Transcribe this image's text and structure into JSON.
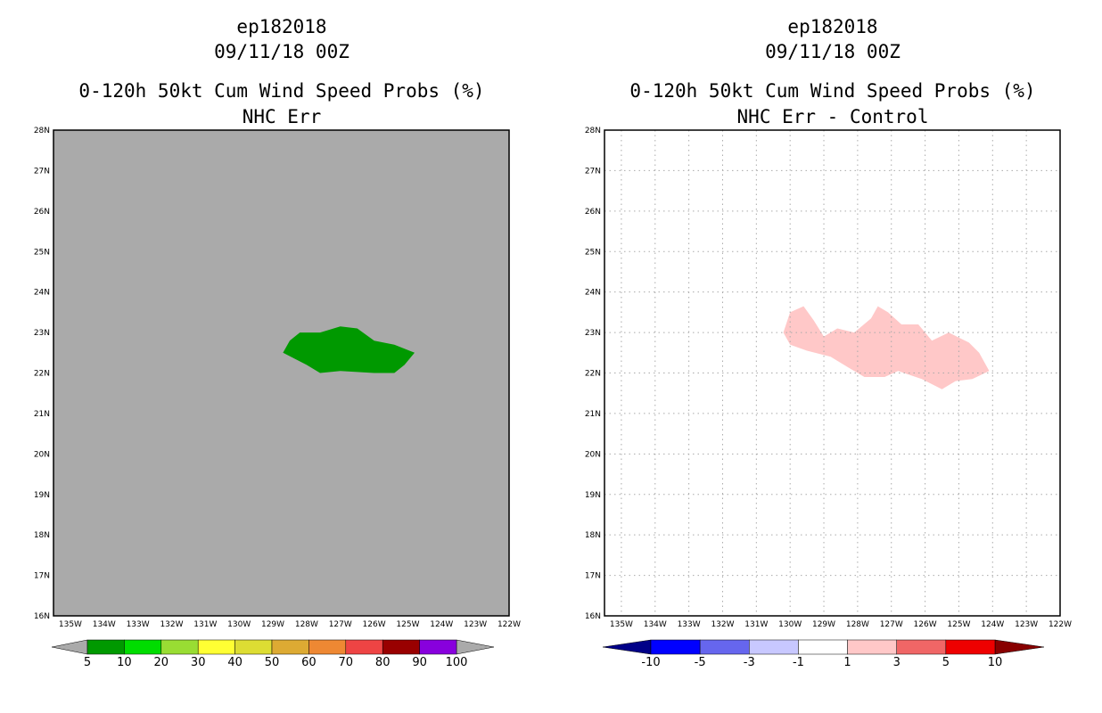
{
  "chart_data": [
    {
      "type": "heatmap",
      "title_lines": [
        "ep182018",
        "09/11/18 00Z",
        "0-120h 50kt Cum Wind Speed Probs (%)",
        "NHC Err"
      ],
      "xlabel": "",
      "ylabel": "",
      "xlim": [
        -135.5,
        -122
      ],
      "ylim": [
        16,
        28
      ],
      "x_ticks": [
        "135W",
        "134W",
        "133W",
        "132W",
        "131W",
        "130W",
        "129W",
        "128W",
        "127W",
        "126W",
        "125W",
        "124W",
        "123W",
        "122W"
      ],
      "y_ticks": [
        "16N",
        "17N",
        "18N",
        "19N",
        "20N",
        "21N",
        "22N",
        "23N",
        "24N",
        "25N",
        "26N",
        "27N",
        "28N"
      ],
      "grid": false,
      "background_color": "#aaaaaa",
      "regions": [
        {
          "label": "5-10",
          "color": "#009900",
          "polygon": [
            [
              -128.7,
              22.5
            ],
            [
              -128.5,
              22.8
            ],
            [
              -128.2,
              23.0
            ],
            [
              -127.6,
              23.0
            ],
            [
              -127.0,
              23.15
            ],
            [
              -126.5,
              23.1
            ],
            [
              -126.0,
              22.8
            ],
            [
              -125.4,
              22.7
            ],
            [
              -124.8,
              22.5
            ],
            [
              -125.1,
              22.2
            ],
            [
              -125.4,
              22.0
            ],
            [
              -126.0,
              22.0
            ],
            [
              -127.0,
              22.05
            ],
            [
              -127.6,
              22.0
            ],
            [
              -128.0,
              22.2
            ]
          ]
        }
      ],
      "colorbar": {
        "labels": [
          "5",
          "10",
          "20",
          "30",
          "40",
          "50",
          "60",
          "70",
          "80",
          "90",
          "100"
        ],
        "colors": [
          "#009900",
          "#00dd00",
          "#99dd33",
          "#ffff33",
          "#dddd33",
          "#ddaa33",
          "#ee8833",
          "#ee4444",
          "#990000",
          "#8800dd"
        ],
        "end_color": "#aaaaaa"
      }
    },
    {
      "type": "heatmap",
      "title_lines": [
        "ep182018",
        "09/11/18 00Z",
        "0-120h 50kt Cum Wind Speed Probs (%)",
        "NHC Err - Control"
      ],
      "xlabel": "",
      "ylabel": "",
      "xlim": [
        -135.5,
        -122
      ],
      "ylim": [
        16,
        28
      ],
      "x_ticks": [
        "135W",
        "134W",
        "133W",
        "132W",
        "131W",
        "130W",
        "129W",
        "128W",
        "127W",
        "126W",
        "125W",
        "124W",
        "123W",
        "122W"
      ],
      "y_ticks": [
        "16N",
        "17N",
        "18N",
        "19N",
        "20N",
        "21N",
        "22N",
        "23N",
        "24N",
        "25N",
        "26N",
        "27N",
        "28N"
      ],
      "grid": true,
      "background_color": "#ffffff",
      "regions": [
        {
          "label": "1-3",
          "color": "#ffc8c8",
          "polygon": [
            [
              -130.2,
              23.0
            ],
            [
              -130.0,
              23.5
            ],
            [
              -129.6,
              23.65
            ],
            [
              -129.3,
              23.3
            ],
            [
              -129.0,
              22.9
            ],
            [
              -128.6,
              23.1
            ],
            [
              -128.1,
              23.0
            ],
            [
              -127.6,
              23.35
            ],
            [
              -127.4,
              23.65
            ],
            [
              -127.1,
              23.5
            ],
            [
              -126.7,
              23.2
            ],
            [
              -126.2,
              23.2
            ],
            [
              -125.8,
              22.8
            ],
            [
              -125.3,
              23.0
            ],
            [
              -124.7,
              22.75
            ],
            [
              -124.4,
              22.5
            ],
            [
              -124.1,
              22.05
            ],
            [
              -124.6,
              21.85
            ],
            [
              -125.1,
              21.8
            ],
            [
              -125.5,
              21.6
            ],
            [
              -126.1,
              21.85
            ],
            [
              -126.8,
              22.05
            ],
            [
              -127.2,
              21.9
            ],
            [
              -127.8,
              21.9
            ],
            [
              -128.3,
              22.15
            ],
            [
              -128.8,
              22.4
            ],
            [
              -129.5,
              22.55
            ],
            [
              -130.0,
              22.7
            ]
          ]
        }
      ],
      "colorbar": {
        "labels": [
          "-10",
          "-5",
          "-3",
          "-1",
          "1",
          "3",
          "5",
          "10"
        ],
        "colors": [
          "#0000ff",
          "#6666ee",
          "#c8c8ff",
          "#ffffff",
          "#ffc8c8",
          "#f06666",
          "#ee0000"
        ],
        "end_colors": [
          "#000088",
          "#880000"
        ]
      }
    }
  ]
}
